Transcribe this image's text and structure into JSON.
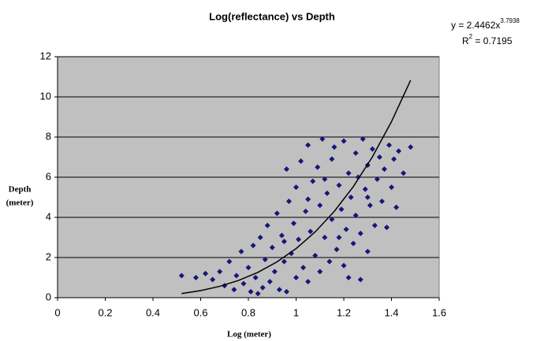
{
  "chart_data": {
    "type": "scatter",
    "title": "Log(reflectance) vs Depth",
    "xlabel": "Log (meter)",
    "ylabel": [
      "Depth",
      "(meter)"
    ],
    "equation": {
      "text": "y = 2.4462x",
      "exponent": "3.7938"
    },
    "r_squared": {
      "text": "R",
      "sup": "2",
      "rest": " = 0.7195"
    },
    "xlim": [
      0,
      1.6
    ],
    "xticks": [
      0,
      0.2,
      0.4,
      0.6,
      0.8,
      1,
      1.2,
      1.4,
      1.6
    ],
    "ylim": [
      0,
      12
    ],
    "yticks": [
      0,
      2,
      4,
      6,
      8,
      10,
      12
    ],
    "grid": true,
    "plot_background": "#c0c0c0",
    "series": [
      {
        "type": "scatter",
        "color": "#16167a",
        "x": [
          0.52,
          0.58,
          0.62,
          0.65,
          0.68,
          0.7,
          0.72,
          0.74,
          0.75,
          0.77,
          0.78,
          0.8,
          0.81,
          0.82,
          0.83,
          0.85,
          0.86,
          0.87,
          0.88,
          0.89,
          0.9,
          0.91,
          0.92,
          0.93,
          0.94,
          0.95,
          0.96,
          0.96,
          0.97,
          0.98,
          0.99,
          1.0,
          1.0,
          1.01,
          1.02,
          1.03,
          1.04,
          1.05,
          1.05,
          1.06,
          1.07,
          1.08,
          1.09,
          1.1,
          1.1,
          1.11,
          1.12,
          1.13,
          1.14,
          1.15,
          1.15,
          1.16,
          1.17,
          1.18,
          1.19,
          1.2,
          1.2,
          1.21,
          1.22,
          1.23,
          1.24,
          1.25,
          1.25,
          1.26,
          1.27,
          1.28,
          1.29,
          1.3,
          1.3,
          1.31,
          1.32,
          1.33,
          1.34,
          1.35,
          1.36,
          1.37,
          1.38,
          1.39,
          1.4,
          1.41,
          1.42,
          1.43,
          1.45,
          1.48,
          1.27,
          1.22,
          0.84,
          0.95,
          1.05,
          1.12,
          1.18,
          1.3
        ],
        "values": [
          1.1,
          1.0,
          1.2,
          0.9,
          1.3,
          0.6,
          1.8,
          0.4,
          1.1,
          2.3,
          0.7,
          1.5,
          0.3,
          2.6,
          1.0,
          3.0,
          0.5,
          1.9,
          3.6,
          0.8,
          2.5,
          1.3,
          4.2,
          0.4,
          3.1,
          1.8,
          6.4,
          0.3,
          4.8,
          2.2,
          3.7,
          1.0,
          5.5,
          2.9,
          6.8,
          1.5,
          4.3,
          7.6,
          0.8,
          3.3,
          5.8,
          2.1,
          6.5,
          1.3,
          4.6,
          7.9,
          3.0,
          5.2,
          1.8,
          6.9,
          3.9,
          7.5,
          2.4,
          5.6,
          4.4,
          7.8,
          1.6,
          3.4,
          6.2,
          5.0,
          2.7,
          7.2,
          4.1,
          6.0,
          3.2,
          7.9,
          5.4,
          2.3,
          6.6,
          4.6,
          7.4,
          3.6,
          5.9,
          7.0,
          4.8,
          6.4,
          3.5,
          7.6,
          5.5,
          6.9,
          4.5,
          7.3,
          6.2,
          7.5,
          0.9,
          1.0,
          0.2,
          2.8,
          4.9,
          5.9,
          3.0,
          5.0
        ]
      },
      {
        "type": "line",
        "color": "#000000",
        "x": [
          0.52,
          0.6,
          0.68,
          0.76,
          0.84,
          0.92,
          1.0,
          1.08,
          1.16,
          1.24,
          1.32,
          1.4,
          1.48
        ],
        "values": [
          0.205,
          0.352,
          0.566,
          0.864,
          1.262,
          1.783,
          2.446,
          3.276,
          4.296,
          5.532,
          7.014,
          8.768,
          10.826
        ]
      }
    ]
  }
}
